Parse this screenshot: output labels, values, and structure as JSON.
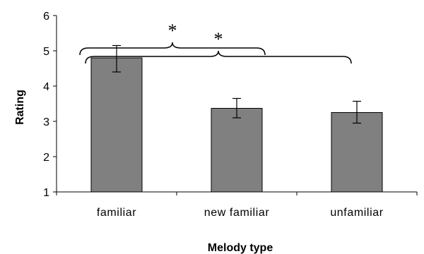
{
  "chart_data": {
    "type": "bar",
    "categories": [
      "familiar",
      "new familiar",
      "unfamiliar"
    ],
    "values": [
      4.8,
      3.37,
      3.25
    ],
    "error_low": [
      4.4,
      3.1,
      2.95
    ],
    "error_high": [
      5.15,
      3.65,
      3.57
    ],
    "xlabel": "Melody type",
    "ylabel": "Rating",
    "ylim": [
      1,
      6
    ],
    "yticks": [
      "1",
      "2",
      "3",
      "4",
      "5",
      "6"
    ],
    "grid": false,
    "legend": "none",
    "annotations": [
      {
        "text": "*",
        "from_category": 0,
        "to_category": 1
      },
      {
        "text": "*",
        "from_category": 0,
        "to_category": 2
      }
    ],
    "colors": {
      "bar_fill": "#808080",
      "bar_stroke": "#000000",
      "axis": "#000000"
    }
  }
}
